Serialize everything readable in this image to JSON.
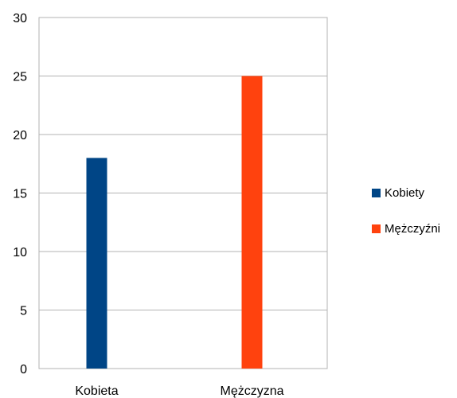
{
  "chart_data": {
    "type": "bar",
    "categories": [
      "Kobieta",
      "Mężczyzna"
    ],
    "series": [
      {
        "name": "Kobiety",
        "values": [
          18,
          null
        ],
        "color": "#004586"
      },
      {
        "name": "Mężczyźni",
        "values": [
          null,
          25
        ],
        "color": "#ff420e"
      }
    ],
    "title": "",
    "xlabel": "",
    "ylabel": "",
    "ylim": [
      0,
      30
    ],
    "yticks": [
      0,
      5,
      10,
      15,
      20,
      25,
      30
    ],
    "grid": true,
    "legend_position": "right"
  }
}
